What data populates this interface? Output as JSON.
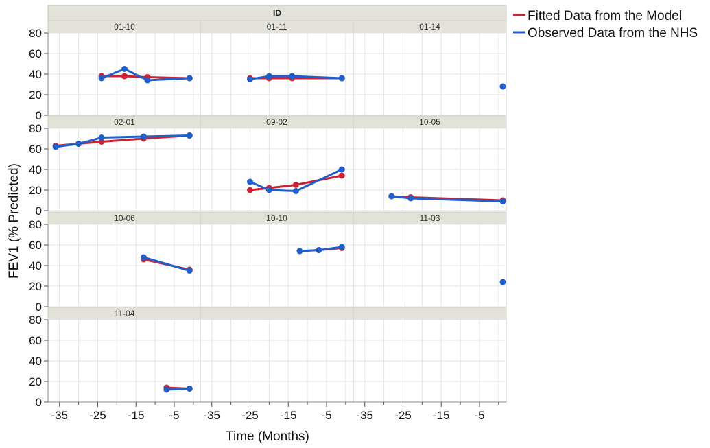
{
  "chart_data": {
    "type": "line",
    "panel_group_title": "ID",
    "xlabel": "Time (Months)",
    "ylabel": "FEV1 (% Predicted)",
    "xlim": [
      -38,
      2
    ],
    "ylim": [
      0,
      80
    ],
    "y_ticks": [
      0,
      20,
      40,
      60,
      80
    ],
    "x_ticks": [
      -35,
      -25,
      -15,
      -5
    ],
    "grid": true,
    "legend_position": "right",
    "series_legend": [
      {
        "name": "Fitted Data from the Model",
        "color": "#cc2233"
      },
      {
        "name": "Observed Data from the NHS",
        "color": "#1f5fcc"
      }
    ],
    "panels": [
      {
        "id": "01-10",
        "fitted": {
          "x": [
            -24,
            -18,
            -12,
            -1
          ],
          "y": [
            38,
            38,
            37,
            36
          ]
        },
        "observed": {
          "x": [
            -24,
            -18,
            -12,
            -1
          ],
          "y": [
            36,
            45,
            34,
            36
          ]
        }
      },
      {
        "id": "01-11",
        "fitted": {
          "x": [
            -25,
            -20,
            -14,
            -1
          ],
          "y": [
            36,
            36,
            36,
            36
          ]
        },
        "observed": {
          "x": [
            -25,
            -20,
            -14,
            -1
          ],
          "y": [
            35,
            38,
            38,
            36
          ]
        }
      },
      {
        "id": "01-14",
        "fitted": {
          "x": [],
          "y": []
        },
        "observed": {
          "x": [
            2
          ],
          "y": [
            28
          ]
        }
      },
      {
        "id": "02-01",
        "fitted": {
          "x": [
            -36,
            -30,
            -24,
            -13,
            -1
          ],
          "y": [
            63,
            65,
            67,
            70,
            73
          ]
        },
        "observed": {
          "x": [
            -36,
            -30,
            -24,
            -13,
            -1
          ],
          "y": [
            62,
            65,
            71,
            72,
            73
          ]
        }
      },
      {
        "id": "09-02",
        "fitted": {
          "x": [
            -25,
            -20,
            -13,
            -1
          ],
          "y": [
            20,
            22,
            25,
            34
          ]
        },
        "observed": {
          "x": [
            -25,
            -20,
            -13,
            -1
          ],
          "y": [
            28,
            20,
            19,
            40
          ]
        }
      },
      {
        "id": "10-05",
        "fitted": {
          "x": [
            -28,
            -23,
            2
          ],
          "y": [
            14,
            13,
            10
          ]
        },
        "observed": {
          "x": [
            -28,
            -23,
            2
          ],
          "y": [
            14,
            12,
            9
          ]
        }
      },
      {
        "id": "10-06",
        "fitted": {
          "x": [
            -13,
            -1
          ],
          "y": [
            46,
            36
          ]
        },
        "observed": {
          "x": [
            -13,
            -1
          ],
          "y": [
            48,
            35
          ]
        }
      },
      {
        "id": "10-10",
        "fitted": {
          "x": [
            -12,
            -7,
            -1
          ],
          "y": [
            54,
            55,
            57
          ]
        },
        "observed": {
          "x": [
            -12,
            -7,
            -1
          ],
          "y": [
            54,
            55,
            58
          ]
        }
      },
      {
        "id": "11-03",
        "fitted": {
          "x": [],
          "y": []
        },
        "observed": {
          "x": [
            2
          ],
          "y": [
            24
          ]
        }
      },
      {
        "id": "11-04",
        "fitted": {
          "x": [
            -7,
            -1
          ],
          "y": [
            14,
            13
          ]
        },
        "observed": {
          "x": [
            -7,
            -1
          ],
          "y": [
            12,
            13
          ]
        }
      },
      {
        "id": "",
        "fitted": {
          "x": [],
          "y": []
        },
        "observed": {
          "x": [],
          "y": []
        }
      },
      {
        "id": "",
        "fitted": {
          "x": [],
          "y": []
        },
        "observed": {
          "x": [],
          "y": []
        }
      }
    ]
  }
}
